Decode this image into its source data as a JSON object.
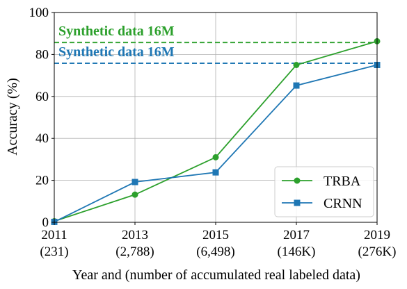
{
  "chart_data": {
    "type": "line",
    "x": [
      2011,
      2013,
      2015,
      2017,
      2019
    ],
    "x_tick_labels": [
      {
        "year": "2011",
        "count": "(231)"
      },
      {
        "year": "2013",
        "count": "(2,788)"
      },
      {
        "year": "2015",
        "count": "(6,498)"
      },
      {
        "year": "2017",
        "count": "(146K)"
      },
      {
        "year": "2019",
        "count": "(276K)"
      }
    ],
    "y_ticks": [
      0,
      20,
      40,
      60,
      80,
      100
    ],
    "xlim": [
      2011,
      2019
    ],
    "ylim": [
      0,
      100
    ],
    "xlabel": "Year and (number of accumulated real labeled data)",
    "ylabel": "Accuracy (%)",
    "grid": true,
    "legend_position": "bottom-right",
    "series": [
      {
        "name": "TRBA",
        "color": "#2ca02c",
        "marker": "circle",
        "values": [
          0.5,
          13.2,
          31,
          75,
          86.3
        ]
      },
      {
        "name": "CRNN",
        "color": "#1f77b4",
        "marker": "square",
        "values": [
          0.2,
          19.2,
          23.8,
          65.2,
          75
        ]
      }
    ],
    "reference_lines": [
      {
        "label": "Synthetic data 16M",
        "y": 85.7,
        "color": "#2ca02c",
        "style": "dashed"
      },
      {
        "label": "Synthetic data 16M",
        "y": 75.8,
        "color": "#1f77b4",
        "style": "dashed"
      }
    ]
  }
}
